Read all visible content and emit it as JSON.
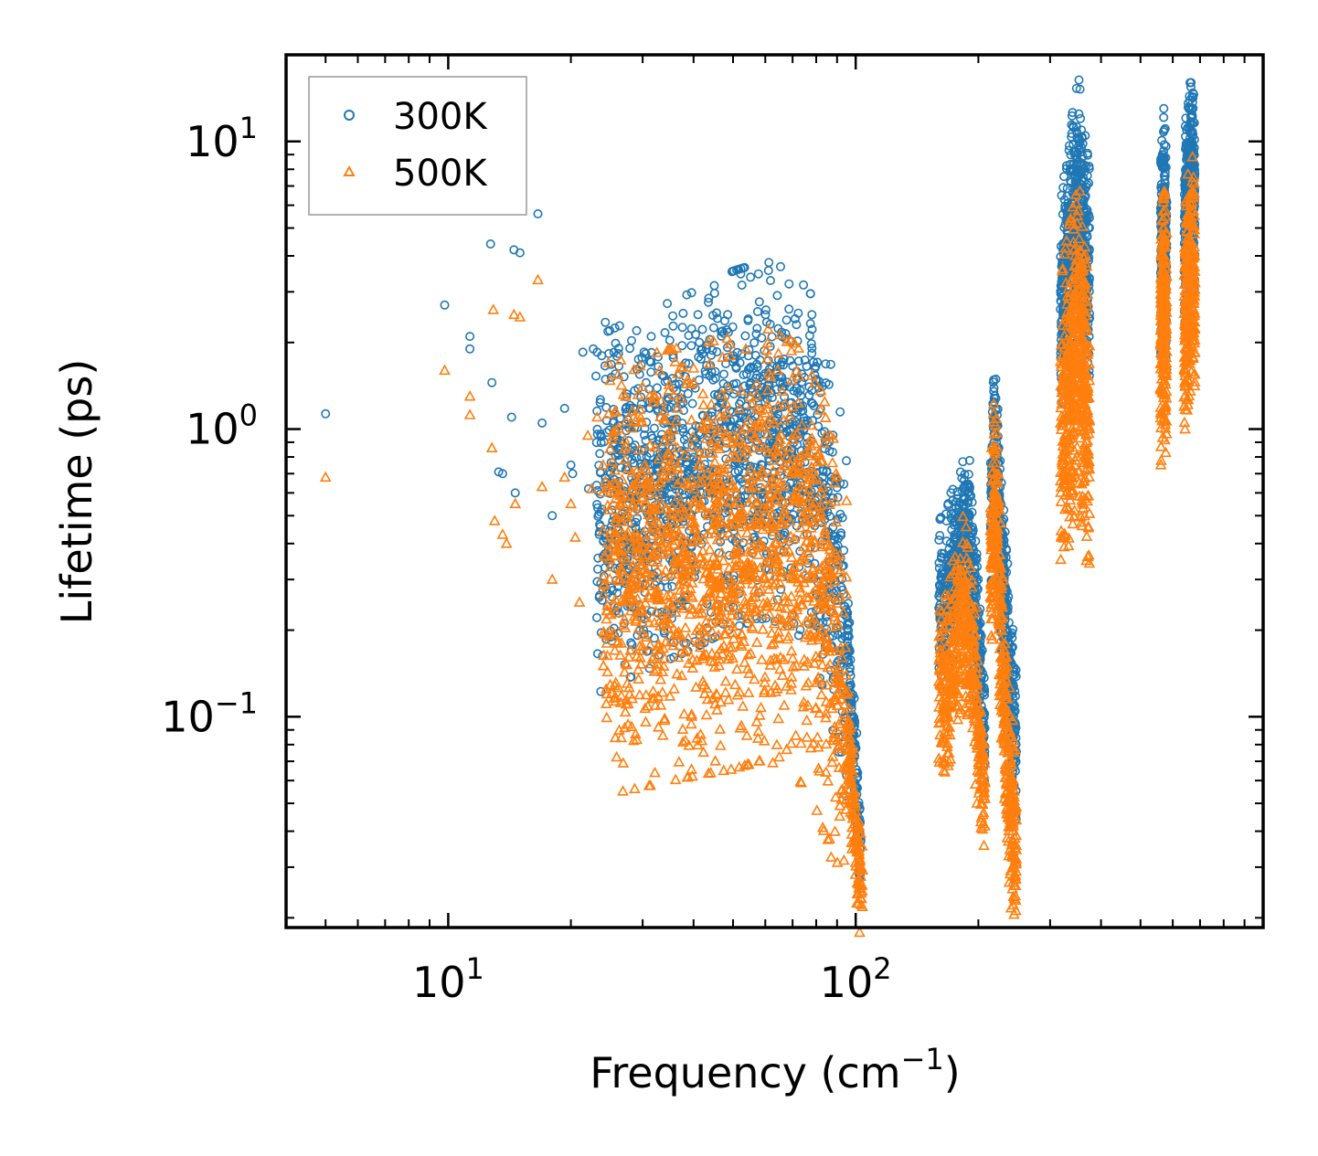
{
  "chart_data": {
    "type": "scatter",
    "title": "",
    "xlabel": {
      "base": "Frequency (cm",
      "exponent": "−1",
      "suffix": ")"
    },
    "ylabel": "Lifetime (ps)",
    "xscale": "log",
    "yscale": "log",
    "xlim": [
      4.0,
      1000.0
    ],
    "ylim": [
      0.0185,
      20.0
    ],
    "xticks": [
      {
        "value": 10,
        "base": "10",
        "exponent": "1"
      },
      {
        "value": 100,
        "base": "10",
        "exponent": "2"
      }
    ],
    "yticks": [
      {
        "value": 0.1,
        "base": "10",
        "exponent": "−1"
      },
      {
        "value": 1,
        "base": "10",
        "exponent": "0"
      },
      {
        "value": 10,
        "base": "10",
        "exponent": "1"
      }
    ],
    "legend": {
      "position": "top-left"
    },
    "series": [
      {
        "name": "300K",
        "marker": "circle",
        "color": "#1f77b4",
        "points": [
          [
            5.0,
            1.13
          ],
          [
            9.8,
            2.7
          ],
          [
            11.3,
            2.1
          ],
          [
            11.3,
            1.9
          ],
          [
            12.7,
            4.4
          ],
          [
            12.8,
            1.45
          ],
          [
            13.3,
            0.71
          ],
          [
            13.6,
            0.7
          ],
          [
            14.3,
            1.1
          ],
          [
            14.5,
            4.2
          ],
          [
            14.6,
            0.6
          ],
          [
            15.0,
            4.1
          ],
          [
            16.6,
            5.6
          ],
          [
            17.0,
            1.05
          ],
          [
            18.0,
            0.5
          ],
          [
            19.3,
            1.18
          ],
          [
            20.0,
            0.75
          ],
          [
            20.2,
            0.7
          ],
          [
            21.4,
            1.85
          ],
          [
            22.1,
            0.62
          ],
          [
            22.7,
            1.9
          ],
          [
            23.2,
            1.85
          ],
          [
            23.8,
            1.8
          ],
          [
            24.3,
            2.35
          ],
          [
            24.8,
            1.83
          ],
          [
            27.0,
            1.52
          ],
          [
            29.0,
            2.2
          ],
          [
            29.5,
            1.55
          ],
          [
            31.5,
            2.1
          ],
          [
            32.5,
            1.3
          ],
          [
            35.5,
            1.5
          ],
          [
            37.5,
            1.95
          ],
          [
            39.5,
            1.95
          ],
          [
            41.0,
            2.5
          ],
          [
            43.0,
            1.9
          ],
          [
            44.5,
            1.88
          ],
          [
            47.5,
            2.15
          ],
          [
            48.5,
            2.5
          ],
          [
            50.0,
            1.8
          ],
          [
            52.0,
            1.7
          ],
          [
            33.0,
            0.78
          ],
          [
            33.5,
            0.65
          ]
        ],
        "clusters": [
          {
            "x": [
              23.0,
              95.0
            ],
            "centerline": [
              [
                23,
                0.5
              ],
              [
                30,
                0.6
              ],
              [
                40,
                0.72
              ],
              [
                50,
                0.85
              ],
              [
                60,
                0.92
              ],
              [
                70,
                0.85
              ],
              [
                78,
                0.7
              ],
              [
                84,
                0.5
              ],
              [
                90,
                0.32
              ],
              [
                95,
                0.2
              ]
            ],
            "spread": 0.62,
            "count": 1600
          },
          {
            "x": [
              95.0,
              103.0
            ],
            "centerline": [
              [
                95,
                0.2
              ],
              [
                99,
                0.08
              ],
              [
                103,
                0.035
              ]
            ],
            "spread": 0.18,
            "count": 140
          },
          {
            "x": [
              160.0,
              200.0
            ],
            "centerline": [
              [
                160,
                0.24
              ],
              [
                168,
                0.27
              ],
              [
                176,
                0.35
              ],
              [
                183,
                0.44
              ],
              [
                190,
                0.4
              ],
              [
                196,
                0.27
              ],
              [
                200,
                0.2
              ]
            ],
            "spread": 0.3,
            "count": 420
          },
          {
            "x": [
              200.0,
              208.0
            ],
            "centerline": [
              [
                200,
                0.2
              ],
              [
                204,
                0.11
              ],
              [
                208,
                0.09
              ]
            ],
            "spread": 0.2,
            "count": 80
          },
          {
            "x": [
              214.0,
              248.0
            ],
            "centerline": [
              [
                214,
                0.5
              ],
              [
                218,
                0.82
              ],
              [
                222,
                0.78
              ],
              [
                226,
                0.45
              ],
              [
                232,
                0.22
              ],
              [
                240,
                0.12
              ],
              [
                248,
                0.075
              ]
            ],
            "spread": 0.32,
            "count": 420
          },
          {
            "x": [
              318.0,
              375.0
            ],
            "centerline": [
              [
                318,
                2.3
              ],
              [
                330,
                3.5
              ],
              [
                342,
                5.0
              ],
              [
                352,
                6.5
              ],
              [
                362,
                4.5
              ],
              [
                375,
                3.0
              ]
            ],
            "spread": 0.42,
            "count": 560
          },
          {
            "x": [
              560.0,
              580.0
            ],
            "centerline": [
              [
                560,
                3.5
              ],
              [
                570,
                5.5
              ],
              [
                580,
                3.8
              ]
            ],
            "spread": 0.38,
            "count": 260
          },
          {
            "x": [
              640.0,
              680.0
            ],
            "centerline": [
              [
                640,
                4.5
              ],
              [
                655,
                7.0
              ],
              [
                670,
                8.0
              ],
              [
                680,
                6.0
              ]
            ],
            "spread": 0.35,
            "count": 320
          }
        ]
      },
      {
        "name": "500K",
        "marker": "triangle",
        "color": "#ff7f0e",
        "points": [
          [
            5.0,
            0.68
          ],
          [
            9.8,
            1.6
          ],
          [
            11.3,
            1.3
          ],
          [
            11.3,
            1.12
          ],
          [
            12.9,
            2.6
          ],
          [
            12.8,
            0.86
          ],
          [
            13.0,
            0.48
          ],
          [
            13.6,
            0.43
          ],
          [
            13.9,
            0.4
          ],
          [
            14.5,
            2.5
          ],
          [
            15.0,
            2.45
          ],
          [
            14.6,
            0.55
          ],
          [
            16.6,
            3.3
          ],
          [
            17.0,
            0.63
          ],
          [
            18.0,
            0.3
          ],
          [
            19.3,
            0.68
          ],
          [
            20.0,
            0.55
          ],
          [
            20.5,
            0.42
          ],
          [
            21.0,
            0.25
          ],
          [
            22.0,
            0.95
          ],
          [
            22.5,
            0.62
          ],
          [
            23.2,
            1.1
          ],
          [
            24.0,
            0.75
          ],
          [
            24.5,
            0.18
          ],
          [
            26.0,
            0.18
          ],
          [
            28.0,
            0.17
          ],
          [
            30.0,
            0.17
          ],
          [
            40.0,
            1.45
          ],
          [
            43.0,
            1.1
          ]
        ],
        "clusters": [
          {
            "x": [
              24.0,
              95.0
            ],
            "centerline": [
              [
                24,
                0.3
              ],
              [
                30,
                0.32
              ],
              [
                40,
                0.35
              ],
              [
                50,
                0.37
              ],
              [
                60,
                0.4
              ],
              [
                70,
                0.36
              ],
              [
                78,
                0.3
              ],
              [
                84,
                0.22
              ],
              [
                90,
                0.15
              ],
              [
                95,
                0.1
              ]
            ],
            "spread": 0.75,
            "count": 1500
          },
          {
            "x": [
              95.0,
              104.0
            ],
            "centerline": [
              [
                95,
                0.1
              ],
              [
                99,
                0.045
              ],
              [
                104,
                0.022
              ]
            ],
            "spread": 0.2,
            "count": 140
          },
          {
            "x": [
              160.0,
              200.0
            ],
            "centerline": [
              [
                160,
                0.12
              ],
              [
                168,
                0.13
              ],
              [
                176,
                0.19
              ],
              [
                183,
                0.24
              ],
              [
                190,
                0.2
              ],
              [
                196,
                0.13
              ],
              [
                200,
                0.09
              ]
            ],
            "spread": 0.32,
            "count": 420
          },
          {
            "x": [
              200.0,
              208.0
            ],
            "centerline": [
              [
                200,
                0.09
              ],
              [
                204,
                0.06
              ],
              [
                208,
                0.05
              ]
            ],
            "spread": 0.2,
            "count": 80
          },
          {
            "x": [
              214.0,
              248.0
            ],
            "centerline": [
              [
                214,
                0.3
              ],
              [
                218,
                0.55
              ],
              [
                222,
                0.5
              ],
              [
                226,
                0.25
              ],
              [
                232,
                0.1
              ],
              [
                240,
                0.05
              ],
              [
                248,
                0.033
              ]
            ],
            "spread": 0.35,
            "count": 420
          },
          {
            "x": [
              318.0,
              375.0
            ],
            "centerline": [
              [
                318,
                0.9
              ],
              [
                330,
                1.3
              ],
              [
                342,
                1.7
              ],
              [
                352,
                2.1
              ],
              [
                362,
                1.5
              ],
              [
                375,
                1.0
              ]
            ],
            "spread": 0.55,
            "count": 560
          },
          {
            "x": [
              560.0,
              580.0
            ],
            "centerline": [
              [
                560,
                1.9
              ],
              [
                570,
                2.8
              ],
              [
                580,
                1.8
              ]
            ],
            "spread": 0.42,
            "count": 260
          },
          {
            "x": [
              640.0,
              680.0
            ],
            "centerline": [
              [
                640,
                2.0
              ],
              [
                655,
                3.2
              ],
              [
                670,
                3.6
              ],
              [
                680,
                2.6
              ]
            ],
            "spread": 0.4,
            "count": 320
          }
        ]
      }
    ]
  }
}
